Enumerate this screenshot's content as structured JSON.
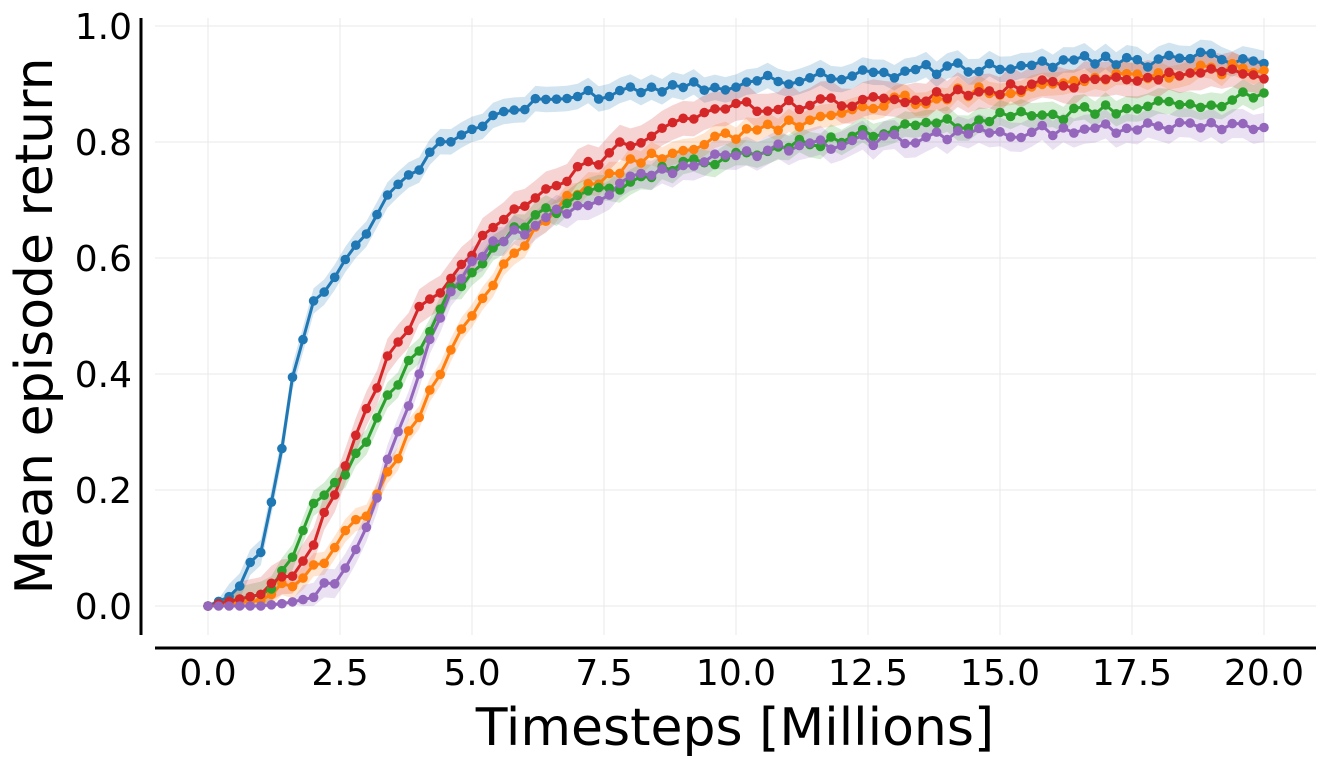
{
  "chart_data": {
    "type": "line",
    "title": "",
    "xlabel": "Timesteps [Millions]",
    "ylabel": "Mean episode return",
    "xlim": [
      -0.5,
      20.5
    ],
    "ylim": [
      -0.05,
      1.02
    ],
    "xticks": [
      0,
      2.5,
      5,
      7.5,
      10,
      12.5,
      15,
      17.5,
      20
    ],
    "xtick_labels": [
      "0.0",
      "2.5",
      "5.0",
      "7.5",
      "10.0",
      "12.5",
      "15.0",
      "17.5",
      "20.0"
    ],
    "yticks": [
      0,
      0.2,
      0.4,
      0.6,
      0.8,
      1.0
    ],
    "ytick_labels": [
      "0.0",
      "0.2",
      "0.4",
      "0.6",
      "0.8",
      "1.0"
    ],
    "grid": true,
    "legend": "none",
    "markers": "circle",
    "shaded_bands": true,
    "series": [
      {
        "color": "#1f77b4",
        "band": 0.022,
        "points": [
          [
            0,
            0
          ],
          [
            0.5,
            0.02
          ],
          [
            1,
            0.1
          ],
          [
            1.25,
            0.19
          ],
          [
            1.5,
            0.34
          ],
          [
            1.75,
            0.45
          ],
          [
            2,
            0.52
          ],
          [
            2.25,
            0.56
          ],
          [
            2.5,
            0.58
          ],
          [
            3,
            0.65
          ],
          [
            3.5,
            0.72
          ],
          [
            4,
            0.76
          ],
          [
            4.5,
            0.8
          ],
          [
            5,
            0.82
          ],
          [
            5.5,
            0.85
          ],
          [
            6,
            0.86
          ],
          [
            7,
            0.88
          ],
          [
            8,
            0.89
          ],
          [
            9,
            0.9
          ],
          [
            10,
            0.9
          ],
          [
            11,
            0.91
          ],
          [
            12,
            0.915
          ],
          [
            13,
            0.92
          ],
          [
            14,
            0.925
          ],
          [
            15,
            0.93
          ],
          [
            16,
            0.935
          ],
          [
            17,
            0.94
          ],
          [
            18,
            0.94
          ],
          [
            19,
            0.945
          ],
          [
            20,
            0.945
          ]
        ]
      },
      {
        "color": "#ff7f0e",
        "band": 0.02,
        "points": [
          [
            0,
            0
          ],
          [
            1,
            0.01
          ],
          [
            2,
            0.06
          ],
          [
            2.5,
            0.11
          ],
          [
            3,
            0.16
          ],
          [
            3.5,
            0.24
          ],
          [
            4,
            0.33
          ],
          [
            4.5,
            0.42
          ],
          [
            5,
            0.5
          ],
          [
            5.5,
            0.57
          ],
          [
            6,
            0.63
          ],
          [
            6.5,
            0.68
          ],
          [
            7,
            0.72
          ],
          [
            8,
            0.76
          ],
          [
            9,
            0.79
          ],
          [
            10,
            0.81
          ],
          [
            11,
            0.83
          ],
          [
            12,
            0.85
          ],
          [
            13,
            0.87
          ],
          [
            14,
            0.88
          ],
          [
            15,
            0.89
          ],
          [
            16,
            0.9
          ],
          [
            17,
            0.91
          ],
          [
            18,
            0.92
          ],
          [
            19,
            0.925
          ],
          [
            20,
            0.93
          ]
        ]
      },
      {
        "color": "#2ca02c",
        "band": 0.022,
        "points": [
          [
            0,
            0
          ],
          [
            1,
            0.02
          ],
          [
            1.5,
            0.07
          ],
          [
            2,
            0.17
          ],
          [
            2.5,
            0.21
          ],
          [
            3,
            0.29
          ],
          [
            3.5,
            0.37
          ],
          [
            4,
            0.45
          ],
          [
            4.5,
            0.53
          ],
          [
            5,
            0.58
          ],
          [
            5.5,
            0.62
          ],
          [
            6,
            0.66
          ],
          [
            7,
            0.7
          ],
          [
            8,
            0.73
          ],
          [
            9,
            0.76
          ],
          [
            10,
            0.78
          ],
          [
            11,
            0.79
          ],
          [
            12,
            0.81
          ],
          [
            13,
            0.82
          ],
          [
            14,
            0.83
          ],
          [
            15,
            0.84
          ],
          [
            16,
            0.845
          ],
          [
            17,
            0.855
          ],
          [
            18,
            0.86
          ],
          [
            19,
            0.87
          ],
          [
            20,
            0.88
          ]
        ]
      },
      {
        "color": "#d62728",
        "band": 0.03,
        "points": [
          [
            0,
            0
          ],
          [
            1,
            0.02
          ],
          [
            1.5,
            0.05
          ],
          [
            2,
            0.11
          ],
          [
            2.5,
            0.22
          ],
          [
            3,
            0.34
          ],
          [
            3.5,
            0.44
          ],
          [
            4,
            0.51
          ],
          [
            4.5,
            0.56
          ],
          [
            5,
            0.61
          ],
          [
            5.5,
            0.66
          ],
          [
            6,
            0.69
          ],
          [
            6.5,
            0.72
          ],
          [
            7,
            0.75
          ],
          [
            8,
            0.8
          ],
          [
            9,
            0.84
          ],
          [
            10,
            0.86
          ],
          [
            11,
            0.865
          ],
          [
            12,
            0.87
          ],
          [
            13,
            0.875
          ],
          [
            14,
            0.88
          ],
          [
            15,
            0.89
          ],
          [
            16,
            0.9
          ],
          [
            17,
            0.91
          ],
          [
            18,
            0.915
          ],
          [
            19,
            0.92
          ],
          [
            20,
            0.92
          ]
        ]
      },
      {
        "color": "#9467bd",
        "band": 0.025,
        "points": [
          [
            0,
            0
          ],
          [
            1,
            0.0
          ],
          [
            1.5,
            0.005
          ],
          [
            2,
            0.015
          ],
          [
            2.5,
            0.05
          ],
          [
            3,
            0.13
          ],
          [
            3.5,
            0.27
          ],
          [
            4,
            0.41
          ],
          [
            4.5,
            0.53
          ],
          [
            5,
            0.6
          ],
          [
            5.5,
            0.63
          ],
          [
            6,
            0.65
          ],
          [
            6.5,
            0.67
          ],
          [
            7,
            0.69
          ],
          [
            8,
            0.73
          ],
          [
            9,
            0.76
          ],
          [
            10,
            0.78
          ],
          [
            11,
            0.79
          ],
          [
            12,
            0.8
          ],
          [
            13,
            0.805
          ],
          [
            14,
            0.81
          ],
          [
            15,
            0.815
          ],
          [
            16,
            0.82
          ],
          [
            17,
            0.825
          ],
          [
            18,
            0.83
          ],
          [
            19,
            0.83
          ],
          [
            20,
            0.83
          ]
        ]
      }
    ]
  }
}
